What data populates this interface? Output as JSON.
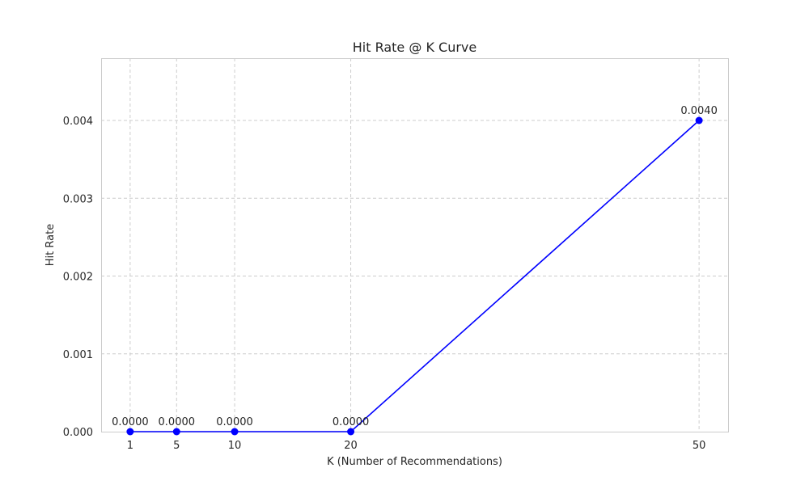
{
  "chart_data": {
    "type": "line",
    "title": "Hit Rate @ K Curve",
    "xlabel": "K (Number of Recommendations)",
    "ylabel": "Hit Rate",
    "x": [
      1,
      5,
      10,
      20,
      50
    ],
    "xticks": [
      "1",
      "5",
      "10",
      "20",
      "50"
    ],
    "xlim": [
      -1.5,
      52.5
    ],
    "ylim": [
      0,
      0.0048
    ],
    "yticks": [
      "0.000",
      "0.001",
      "0.002",
      "0.003",
      "0.004"
    ],
    "ytick_values": [
      0,
      0.001,
      0.002,
      0.003,
      0.004
    ],
    "grid": true,
    "series": [
      {
        "values": [
          0.0,
          0.0,
          0.0,
          0.0,
          0.004
        ],
        "labels": [
          "0.0000",
          "0.0000",
          "0.0000",
          "0.0000",
          "0.0040"
        ],
        "color": "#0000ff",
        "marker": "circle"
      }
    ]
  }
}
